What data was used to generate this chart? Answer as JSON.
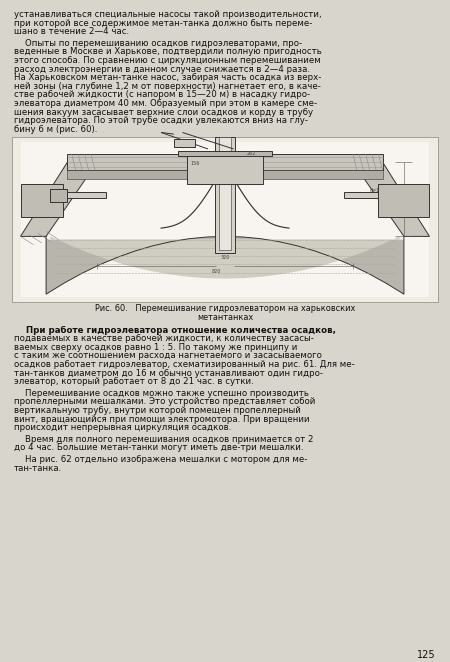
{
  "page_bg": "#d8d5cc",
  "text_color": "#111111",
  "page_number": "125",
  "top_text": [
    "устанавливаться специальные насосы такой производительности,",
    "при которой все содержимое метан-танка должно быть переме-",
    "шано в течение 2—4 час."
  ],
  "para1_indent": "    Опыты по перемешиванию осадков гидроэлеваторами, про-",
  "para1": [
    "веденные в Москве и Харькове, подтвердили полную пригодность",
    "этого способа. По сравнению с циркуляционным перемешиванием",
    "расход электроэнергии в данном случае снижается в 2—4 раза.",
    "На Харьковском метан-танке насос, забирая часть осадка из верх-",
    "ней зоны (на глубине 1,2 м от поверхности) нагнетает его, в каче-",
    "стве рабочей жидкости (с напором в 15—20 м) в насадку гидро-",
    "элеватора диаметром 40 мм. Образуемый при этом в камере сме-",
    "шения вакуум засасывает верхние слои осадков и корду в трубу",
    "гидроэлеватора. По этой трубе осадки увлекаются вниз на глу-",
    "бину 6 м (рис. 60)."
  ],
  "fig_caption": "Рис. 60.   Перемешивание гидроэлеватором на харьковских",
  "fig_caption2": "метантанках",
  "para2_indent": "    При работе гидроэлеватора отношение количества осадков,",
  "para2": [
    "подаваемых в качестве рабочей жидкости, к количеству засасы-",
    "ваемых сверху осадков равно 1 : 5. По такому же принципу и",
    "с таким же соотношением расхода нагнетаемого и засасываемого",
    "осадков работает гидроэлеватор, схематизированный на рис. 61. Для ме-",
    "тан-танков диаметром до 16 м обычно устанавливают один гидро-",
    "элеватор, который работает от 8 до 21 час. в сутки."
  ],
  "para3_indent": "    Перемешивание осадков можно также успешно производить",
  "para3": [
    "пропеллерными мешалками. Это устройство представляет собой",
    "вертикальную трубу, внутри которой помещен пропеллерный",
    "винт, вращающийся при помощи электромотора. При вращении",
    "происходит непрерывная циркуляция осадков."
  ],
  "para4_indent": "    Время для полного перемешивания осадков принимается от 2",
  "para4": [
    "до 4 час. Большие метан-танки могут иметь две-три мешалки."
  ],
  "para5_indent": "    На рис. 62 отдельно изображена мешалки с мотором для ме-",
  "para5": [
    "тан-танка."
  ],
  "diag_bg": "#f0ece4",
  "diag_line": "#333333"
}
